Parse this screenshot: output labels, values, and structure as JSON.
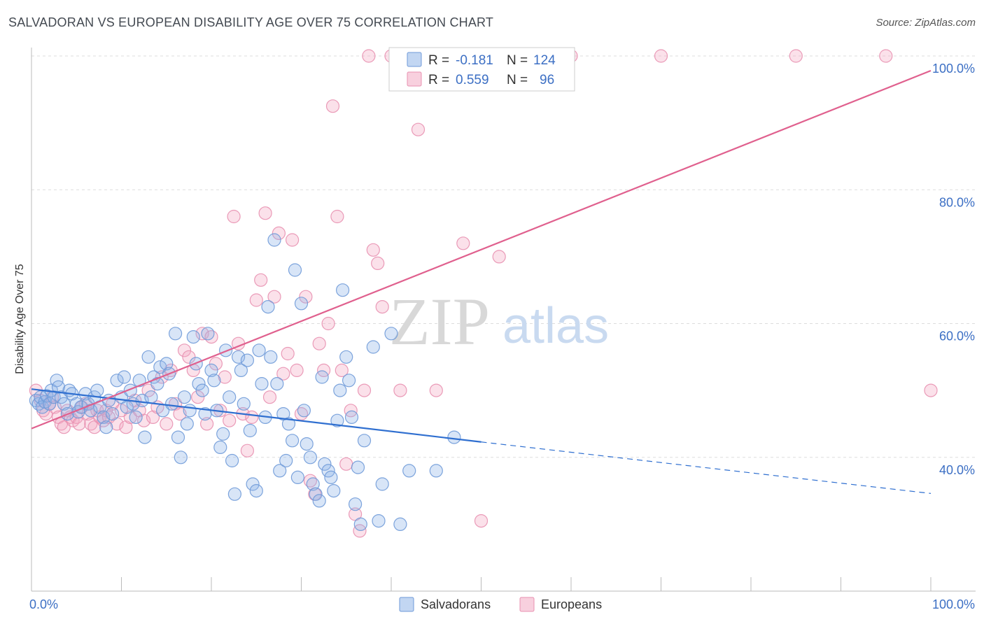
{
  "title": "SALVADORAN VS EUROPEAN DISABILITY AGE OVER 75 CORRELATION CHART",
  "source": "Source: ZipAtlas.com",
  "watermark": {
    "zip": "ZIP",
    "atlas": "atlas"
  },
  "colors": {
    "salvadoran": "#8fb4e8",
    "salvadoran_line": "#2f6fd0",
    "european": "#f3a9c2",
    "european_line": "#e0608e",
    "grid": "#dddddd",
    "tick_label": "#3c6fc4"
  },
  "legend": {
    "r_label": "R = ",
    "n_label": "N = ",
    "rows": [
      {
        "series": "salvadoran",
        "r": "-0.181",
        "n": "124"
      },
      {
        "series": "european",
        "r": "0.559",
        "n": "96"
      }
    ]
  },
  "chart_data": {
    "type": "scatter",
    "title": "SALVADORAN VS EUROPEAN DISABILITY AGE OVER 75 CORRELATION CHART",
    "xlabel": "",
    "ylabel": "Disability Age Over 75",
    "xlim": [
      0,
      100
    ],
    "ylim": [
      20,
      100
    ],
    "x_tick_labels": [
      {
        "value": 0,
        "label": "0.0%"
      },
      {
        "value": 100,
        "label": "100.0%"
      }
    ],
    "y_tick_labels": [
      {
        "value": 40,
        "label": "40.0%"
      },
      {
        "value": 60,
        "label": "60.0%"
      },
      {
        "value": 80,
        "label": "80.0%"
      },
      {
        "value": 100,
        "label": "100.0%"
      }
    ],
    "grid": true,
    "legend_position": "top-center",
    "series": [
      {
        "name": "Salvadorans",
        "color": "#8fb4e8",
        "trend": {
          "x": [
            0,
            50,
            100
          ],
          "y": [
            50.2,
            42.3,
            34.6
          ],
          "solid_until": 50
        },
        "points": [
          [
            0.5,
            48.5
          ],
          [
            0.8,
            48
          ],
          [
            1,
            49
          ],
          [
            1.2,
            47.5
          ],
          [
            1.5,
            48.3
          ],
          [
            1.7,
            49.2
          ],
          [
            2,
            48
          ],
          [
            2.2,
            50
          ],
          [
            2.5,
            49
          ],
          [
            2.8,
            51.5
          ],
          [
            3,
            50.5
          ],
          [
            3.3,
            49
          ],
          [
            3.6,
            48
          ],
          [
            4,
            46.5
          ],
          [
            4.2,
            50
          ],
          [
            4.5,
            49.5
          ],
          [
            5,
            48
          ],
          [
            5.2,
            46.8
          ],
          [
            5.5,
            47.5
          ],
          [
            6,
            49.5
          ],
          [
            6.3,
            48
          ],
          [
            6.6,
            47
          ],
          [
            7,
            49
          ],
          [
            7.3,
            50
          ],
          [
            7.6,
            47.5
          ],
          [
            8,
            46
          ],
          [
            8.3,
            44.5
          ],
          [
            8.6,
            48.5
          ],
          [
            9,
            46.5
          ],
          [
            9.5,
            51.5
          ],
          [
            10,
            49
          ],
          [
            10.3,
            52
          ],
          [
            10.6,
            47.5
          ],
          [
            11,
            50
          ],
          [
            11.3,
            48
          ],
          [
            11.6,
            46
          ],
          [
            12,
            51.5
          ],
          [
            12.3,
            48.5
          ],
          [
            12.6,
            43
          ],
          [
            13,
            55
          ],
          [
            13.3,
            49
          ],
          [
            13.6,
            52
          ],
          [
            14,
            51
          ],
          [
            14.3,
            53.5
          ],
          [
            14.6,
            47
          ],
          [
            15,
            54
          ],
          [
            15.3,
            52.5
          ],
          [
            15.6,
            48
          ],
          [
            16,
            58.5
          ],
          [
            16.3,
            43
          ],
          [
            16.6,
            40
          ],
          [
            17,
            49
          ],
          [
            17.3,
            45
          ],
          [
            17.6,
            47
          ],
          [
            18,
            58
          ],
          [
            18.3,
            54
          ],
          [
            18.6,
            51
          ],
          [
            19,
            50
          ],
          [
            19.3,
            46.5
          ],
          [
            19.6,
            58.5
          ],
          [
            20,
            53
          ],
          [
            20.3,
            51.5
          ],
          [
            20.6,
            47
          ],
          [
            21,
            41.5
          ],
          [
            21.3,
            43.5
          ],
          [
            21.6,
            56
          ],
          [
            22,
            49
          ],
          [
            22.3,
            39.5
          ],
          [
            22.6,
            34.5
          ],
          [
            23,
            55
          ],
          [
            23.3,
            53
          ],
          [
            23.6,
            48
          ],
          [
            24,
            54.5
          ],
          [
            24.3,
            44
          ],
          [
            24.6,
            36
          ],
          [
            25,
            35
          ],
          [
            25.3,
            56
          ],
          [
            25.6,
            51
          ],
          [
            26,
            46
          ],
          [
            26.3,
            62.5
          ],
          [
            26.6,
            55
          ],
          [
            27,
            72.5
          ],
          [
            27.3,
            51
          ],
          [
            27.6,
            38
          ],
          [
            28,
            46.5
          ],
          [
            28.3,
            39.5
          ],
          [
            28.6,
            45
          ],
          [
            29,
            42.5
          ],
          [
            29.3,
            68
          ],
          [
            29.6,
            37
          ],
          [
            30,
            63
          ],
          [
            30.3,
            47
          ],
          [
            30.6,
            42
          ],
          [
            31,
            40
          ],
          [
            31.3,
            36
          ],
          [
            31.6,
            34.5
          ],
          [
            32,
            33.5
          ],
          [
            32.3,
            52
          ],
          [
            32.6,
            39
          ],
          [
            33,
            38
          ],
          [
            33.3,
            37
          ],
          [
            33.6,
            35
          ],
          [
            34,
            45.5
          ],
          [
            34.3,
            50
          ],
          [
            34.6,
            65
          ],
          [
            35,
            55
          ],
          [
            35.3,
            51.5
          ],
          [
            35.6,
            46
          ],
          [
            36,
            33
          ],
          [
            36.3,
            38.5
          ],
          [
            36.6,
            30
          ],
          [
            37,
            42.5
          ],
          [
            38,
            56.5
          ],
          [
            38.6,
            30.5
          ],
          [
            39,
            36
          ],
          [
            40,
            58.5
          ],
          [
            41,
            30
          ],
          [
            42,
            38
          ],
          [
            45,
            38
          ],
          [
            47,
            43
          ]
        ]
      },
      {
        "name": "Europeans",
        "color": "#f3a9c2",
        "trend": {
          "x": [
            0,
            100
          ],
          "y": [
            44.3,
            97.8
          ]
        },
        "points": [
          [
            0.5,
            50
          ],
          [
            1,
            48.5
          ],
          [
            1.3,
            47
          ],
          [
            1.6,
            46.5
          ],
          [
            2,
            48
          ],
          [
            2.3,
            49
          ],
          [
            2.6,
            47.5
          ],
          [
            3,
            46
          ],
          [
            3.3,
            45
          ],
          [
            3.6,
            44.5
          ],
          [
            4,
            47
          ],
          [
            4.3,
            46
          ],
          [
            4.6,
            45.5
          ],
          [
            5,
            46
          ],
          [
            5.3,
            45
          ],
          [
            5.6,
            47.5
          ],
          [
            6,
            48
          ],
          [
            6.3,
            46.5
          ],
          [
            6.6,
            45
          ],
          [
            7,
            44.5
          ],
          [
            7.3,
            47
          ],
          [
            7.6,
            46
          ],
          [
            8,
            45.5
          ],
          [
            8.3,
            47
          ],
          [
            8.6,
            46
          ],
          [
            9,
            48
          ],
          [
            9.5,
            45
          ],
          [
            10,
            47
          ],
          [
            10.5,
            44.5
          ],
          [
            11,
            46
          ],
          [
            11.5,
            48.5
          ],
          [
            12,
            47
          ],
          [
            12.5,
            45.5
          ],
          [
            13,
            50
          ],
          [
            13.5,
            46
          ],
          [
            14,
            47.5
          ],
          [
            14.5,
            52
          ],
          [
            15,
            45
          ],
          [
            15.5,
            53
          ],
          [
            16,
            48
          ],
          [
            16.5,
            46.5
          ],
          [
            17,
            56
          ],
          [
            17.5,
            55
          ],
          [
            18,
            53
          ],
          [
            18.5,
            49
          ],
          [
            19,
            58.5
          ],
          [
            19.5,
            45
          ],
          [
            20,
            58
          ],
          [
            20.5,
            54
          ],
          [
            21,
            47
          ],
          [
            21.5,
            52
          ],
          [
            22,
            45.5
          ],
          [
            22.5,
            76
          ],
          [
            23,
            57
          ],
          [
            23.5,
            46.5
          ],
          [
            24,
            41
          ],
          [
            24.5,
            46
          ],
          [
            25,
            63.5
          ],
          [
            25.5,
            66.5
          ],
          [
            26,
            76.5
          ],
          [
            26.5,
            49
          ],
          [
            27,
            64
          ],
          [
            27.5,
            73.5
          ],
          [
            28,
            52.5
          ],
          [
            28.5,
            55.5
          ],
          [
            29,
            72.5
          ],
          [
            29.5,
            53
          ],
          [
            30,
            46.5
          ],
          [
            30.5,
            64
          ],
          [
            31,
            36.5
          ],
          [
            31.5,
            34.5
          ],
          [
            32,
            57
          ],
          [
            32.5,
            53
          ],
          [
            33,
            60
          ],
          [
            33.5,
            92.5
          ],
          [
            34,
            76
          ],
          [
            34.5,
            53
          ],
          [
            35,
            39
          ],
          [
            35.5,
            47
          ],
          [
            36,
            31.5
          ],
          [
            36.5,
            29
          ],
          [
            37,
            50
          ],
          [
            37.5,
            100
          ],
          [
            38,
            71
          ],
          [
            38.5,
            69
          ],
          [
            39,
            62.5
          ],
          [
            40,
            100
          ],
          [
            41,
            50
          ],
          [
            42,
            100
          ],
          [
            43,
            89
          ],
          [
            45,
            50
          ],
          [
            46,
            100
          ],
          [
            48,
            72
          ],
          [
            50,
            30.5
          ],
          [
            52,
            70
          ],
          [
            60,
            100
          ],
          [
            70,
            100
          ],
          [
            85,
            100
          ],
          [
            95,
            100
          ],
          [
            100,
            50
          ]
        ]
      }
    ]
  },
  "bottom_legend": [
    {
      "series": "salvadoran",
      "label": "Salvadorans"
    },
    {
      "series": "european",
      "label": "Europeans"
    }
  ]
}
